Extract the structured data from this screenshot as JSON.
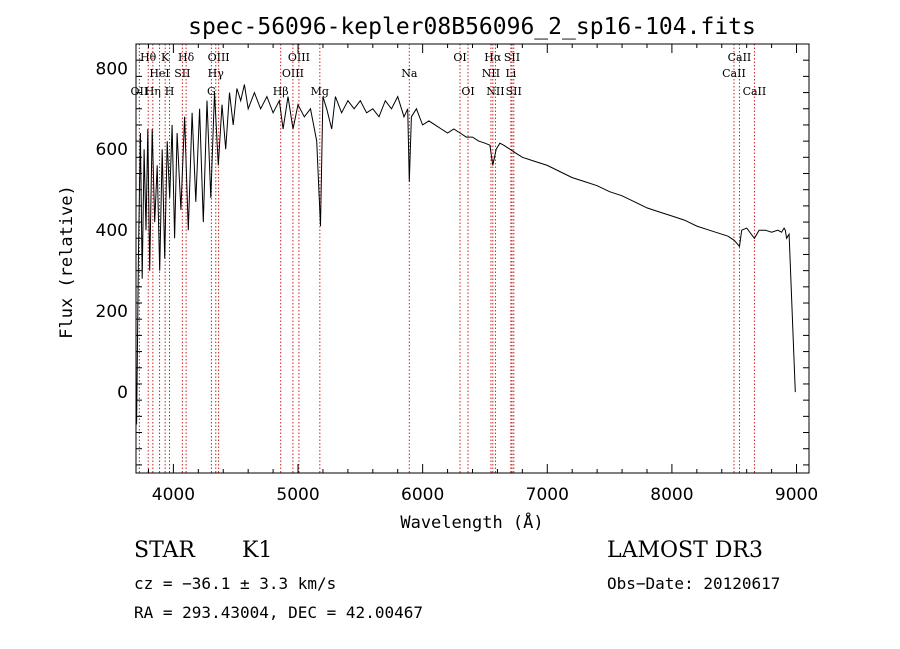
{
  "chart_data": {
    "type": "line",
    "title": "spec-56096-kepler08B56096_2_sp16-104.fits",
    "xlabel": "Wavelength (Å)",
    "ylabel": "Flux (relative)",
    "xlim": [
      3700,
      9100
    ],
    "ylim": [
      -200,
      860
    ],
    "xticks": [
      4000,
      5000,
      6000,
      7000,
      8000,
      9000
    ],
    "yticks": [
      0,
      200,
      400,
      600,
      800
    ],
    "grid": false,
    "series": [
      {
        "name": "spectrum",
        "x": [
          3705,
          3720,
          3735,
          3750,
          3765,
          3780,
          3795,
          3810,
          3830,
          3850,
          3870,
          3890,
          3910,
          3930,
          3950,
          3970,
          3990,
          4010,
          4030,
          4060,
          4090,
          4120,
          4150,
          4180,
          4210,
          4240,
          4270,
          4300,
          4330,
          4360,
          4390,
          4420,
          4450,
          4480,
          4510,
          4540,
          4570,
          4600,
          4650,
          4700,
          4750,
          4800,
          4850,
          4880,
          4920,
          4960,
          5000,
          5050,
          5100,
          5150,
          5180,
          5200,
          5230,
          5270,
          5300,
          5350,
          5400,
          5450,
          5500,
          5550,
          5600,
          5650,
          5700,
          5750,
          5800,
          5850,
          5880,
          5893,
          5910,
          5950,
          6000,
          6050,
          6100,
          6150,
          6200,
          6250,
          6300,
          6350,
          6400,
          6450,
          6500,
          6540,
          6563,
          6590,
          6620,
          6650,
          6700,
          6750,
          6800,
          6900,
          7000,
          7100,
          7200,
          7300,
          7400,
          7500,
          7600,
          7700,
          7800,
          7900,
          8000,
          8100,
          8200,
          8300,
          8400,
          8450,
          8500,
          8542,
          8560,
          8600,
          8662,
          8700,
          8750,
          8800,
          8850,
          8880,
          8900,
          8910,
          8920,
          8940,
          8990
        ],
        "values": [
          -80,
          350,
          640,
          280,
          600,
          400,
          650,
          300,
          650,
          420,
          560,
          300,
          600,
          330,
          620,
          480,
          660,
          380,
          640,
          450,
          680,
          400,
          690,
          470,
          700,
          420,
          720,
          480,
          740,
          560,
          710,
          600,
          740,
          660,
          750,
          720,
          760,
          700,
          740,
          700,
          730,
          690,
          720,
          650,
          730,
          650,
          710,
          680,
          700,
          620,
          410,
          730,
          700,
          650,
          730,
          690,
          720,
          700,
          720,
          690,
          700,
          680,
          720,
          700,
          730,
          680,
          700,
          520,
          680,
          700,
          660,
          670,
          660,
          650,
          640,
          650,
          640,
          630,
          630,
          620,
          615,
          610,
          560,
          600,
          615,
          610,
          600,
          590,
          580,
          570,
          560,
          545,
          530,
          520,
          510,
          495,
          485,
          470,
          455,
          445,
          435,
          425,
          410,
          400,
          390,
          385,
          375,
          360,
          400,
          405,
          380,
          400,
          400,
          395,
          400,
          395,
          405,
          400,
          380,
          390,
          0
        ]
      }
    ],
    "lines": [
      {
        "label": "Hθ",
        "x": 3798,
        "row": 1
      },
      {
        "label": "OII",
        "x": 3727,
        "row": 3
      },
      {
        "label": "Hη",
        "x": 3835,
        "row": 3
      },
      {
        "label": "K",
        "x": 3934,
        "row": 1
      },
      {
        "label": "HeI",
        "x": 3889,
        "row": 2
      },
      {
        "label": "H",
        "x": 3969,
        "row": 3
      },
      {
        "label": "SII",
        "x": 4072,
        "row": 2
      },
      {
        "label": "Hδ",
        "x": 4102,
        "row": 1
      },
      {
        "label": "OIII",
        "x": 4363,
        "row": 1
      },
      {
        "label": "Hγ",
        "x": 4340,
        "row": 2
      },
      {
        "label": "G",
        "x": 4305,
        "row": 3
      },
      {
        "label": "OIII",
        "x": 5007,
        "row": 1
      },
      {
        "label": "OIII",
        "x": 4959,
        "row": 2
      },
      {
        "label": "Hβ",
        "x": 4861,
        "row": 3
      },
      {
        "label": "Mg",
        "x": 5175,
        "row": 3
      },
      {
        "label": "Na",
        "x": 5893,
        "row": 2
      },
      {
        "label": "OI",
        "x": 6300,
        "row": 1
      },
      {
        "label": "OI",
        "x": 6364,
        "row": 3
      },
      {
        "label": "Hα",
        "x": 6563,
        "row": 1
      },
      {
        "label": "SII",
        "x": 6717,
        "row": 1
      },
      {
        "label": "NII",
        "x": 6548,
        "row": 2
      },
      {
        "label": "Li",
        "x": 6708,
        "row": 2
      },
      {
        "label": "NII",
        "x": 6584,
        "row": 3
      },
      {
        "label": "SII",
        "x": 6731,
        "row": 3
      },
      {
        "label": "CaII",
        "x": 8542,
        "row": 1
      },
      {
        "label": "CaII",
        "x": 8498,
        "row": 2
      },
      {
        "label": "CaII",
        "x": 8662,
        "row": 3
      }
    ]
  },
  "info": {
    "object_class": "STAR",
    "subclass": "K1",
    "survey": "LAMOST DR3",
    "cz": "cz = −36.1 ± 3.3 km/s",
    "obs_date": "Obs−Date: 20120617",
    "coords": "RA = 293.43004, DEC =  42.00467"
  },
  "colors": {
    "spectrum": "#000000",
    "line_marker": "#cc2222"
  }
}
